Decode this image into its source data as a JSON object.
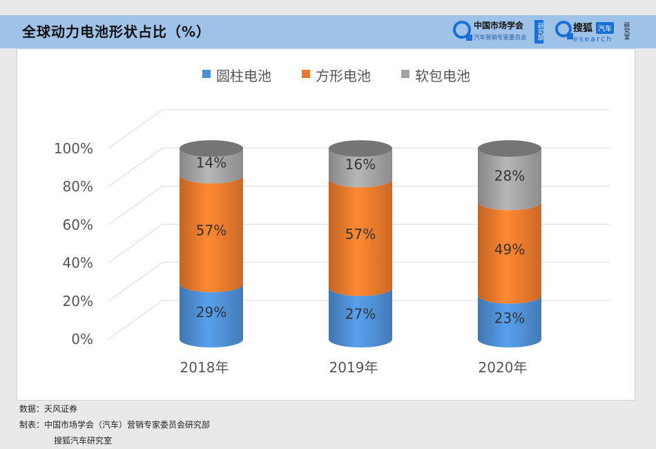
{
  "header": {
    "title": "全球动力电池形状占比（%）",
    "logo1": {
      "name": "中国市场学会",
      "sub": "汽车营销专家委员会",
      "dept": "研究部"
    },
    "logo2": {
      "name": "搜狐",
      "badge": "汽车",
      "en": "esearch",
      "dept": "研究室"
    }
  },
  "chart_data": {
    "type": "bar",
    "stacked": true,
    "style": "3d-cylinder",
    "categories": [
      "2018年",
      "2019年",
      "2020年"
    ],
    "series": [
      {
        "name": "圆柱电池",
        "color": "#4f8fd4",
        "values": [
          29,
          27,
          23
        ],
        "labels": [
          "29%",
          "27%",
          "23%"
        ]
      },
      {
        "name": "方形电池",
        "color": "#ec7a2c",
        "values": [
          57,
          57,
          49
        ],
        "labels": [
          "57%",
          "57%",
          "49%"
        ]
      },
      {
        "name": "软包电池",
        "color": "#a3a3a3",
        "values": [
          14,
          16,
          28
        ],
        "labels": [
          "14%",
          "16%",
          "28%"
        ]
      }
    ],
    "yticks": [
      "0%",
      "20%",
      "40%",
      "60%",
      "80%",
      "100%"
    ],
    "ylim": [
      0,
      100
    ],
    "grid": true,
    "legend": "top-center"
  },
  "footer": {
    "source": "数据：天风证券",
    "made_by": "制表：中国市场学会（汽车）营销专家委员会研究部",
    "made_by2": "搜狐汽车研究室"
  }
}
